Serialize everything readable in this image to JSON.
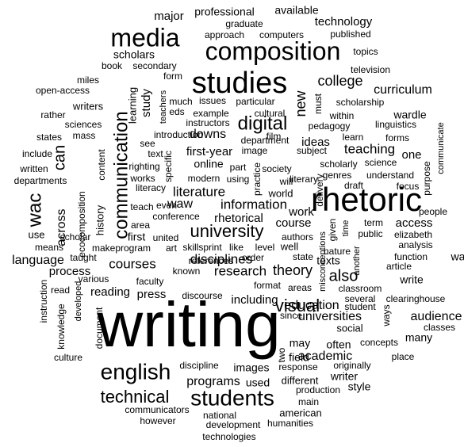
{
  "word_cloud": {
    "words": [
      {
        "text": "writing"
      },
      {
        "text": "rhetoric"
      },
      {
        "text": "studies"
      },
      {
        "text": "composition"
      },
      {
        "text": "media"
      },
      {
        "text": "communication"
      },
      {
        "text": "english"
      },
      {
        "text": "students"
      },
      {
        "text": "digital"
      },
      {
        "text": "university"
      },
      {
        "text": "technical"
      },
      {
        "text": "wac"
      },
      {
        "text": "college"
      },
      {
        "text": "visual"
      },
      {
        "text": "can"
      },
      {
        "text": "also"
      },
      {
        "text": "new"
      },
      {
        "text": "theory"
      },
      {
        "text": "literature"
      },
      {
        "text": "information"
      },
      {
        "text": "research"
      },
      {
        "text": "teaching"
      },
      {
        "text": "courses"
      },
      {
        "text": "disciplines"
      },
      {
        "text": "programs"
      },
      {
        "text": "education"
      },
      {
        "text": "audience"
      },
      {
        "text": "universities"
      },
      {
        "text": "academic"
      },
      {
        "text": "language"
      },
      {
        "text": "across"
      },
      {
        "text": "curriculum"
      },
      {
        "text": "work"
      },
      {
        "text": "course"
      },
      {
        "text": "waw"
      },
      {
        "text": "downs"
      },
      {
        "text": "first-year"
      },
      {
        "text": "rhetorical"
      },
      {
        "text": "ideas"
      },
      {
        "text": "access"
      },
      {
        "text": "technology"
      },
      {
        "text": "major"
      },
      {
        "text": "professional"
      },
      {
        "text": "available"
      },
      {
        "text": "scholars"
      },
      {
        "text": "study"
      },
      {
        "text": "online"
      },
      {
        "text": "wardle"
      },
      {
        "text": "one"
      },
      {
        "text": "process"
      },
      {
        "text": "reading"
      },
      {
        "text": "press"
      },
      {
        "text": "including"
      },
      {
        "text": "may"
      },
      {
        "text": "many"
      },
      {
        "text": "field"
      },
      {
        "text": "write"
      },
      {
        "text": "way"
      },
      {
        "text": "often"
      },
      {
        "text": "writer"
      },
      {
        "text": "style"
      },
      {
        "text": "images"
      },
      {
        "text": "used"
      },
      {
        "text": "different"
      },
      {
        "text": "american"
      },
      {
        "text": "social"
      },
      {
        "text": "texts"
      },
      {
        "text": "first"
      },
      {
        "text": "history"
      },
      {
        "text": "learning"
      },
      {
        "text": "world"
      },
      {
        "text": "well"
      },
      {
        "text": "graduate"
      },
      {
        "text": "computers"
      },
      {
        "text": "approach"
      },
      {
        "text": "published"
      },
      {
        "text": "book"
      },
      {
        "text": "secondary"
      },
      {
        "text": "topics"
      },
      {
        "text": "television"
      },
      {
        "text": "miles"
      },
      {
        "text": "open-access"
      },
      {
        "text": "form"
      },
      {
        "text": "much"
      },
      {
        "text": "issues"
      },
      {
        "text": "particular"
      },
      {
        "text": "must"
      },
      {
        "text": "scholarship"
      },
      {
        "text": "writers"
      },
      {
        "text": "eds"
      },
      {
        "text": "example"
      },
      {
        "text": "teachers"
      },
      {
        "text": "instructors"
      },
      {
        "text": "cultural"
      },
      {
        "text": "within"
      },
      {
        "text": "rather"
      },
      {
        "text": "sciences"
      },
      {
        "text": "pedagogy"
      },
      {
        "text": "linguistics"
      },
      {
        "text": "mass"
      },
      {
        "text": "introduction"
      },
      {
        "text": "film"
      },
      {
        "text": "learn"
      },
      {
        "text": "forms"
      },
      {
        "text": "states"
      },
      {
        "text": "text"
      },
      {
        "text": "department"
      },
      {
        "text": "see"
      },
      {
        "text": "image"
      },
      {
        "text": "subject"
      },
      {
        "text": "communicate"
      },
      {
        "text": "include"
      },
      {
        "text": "scholarly"
      },
      {
        "text": "science"
      },
      {
        "text": "written"
      },
      {
        "text": "righting"
      },
      {
        "text": "part"
      },
      {
        "text": "society"
      },
      {
        "text": "literary"
      },
      {
        "text": "genres"
      },
      {
        "text": "understand"
      },
      {
        "text": "departments"
      },
      {
        "text": "works"
      },
      {
        "text": "using"
      },
      {
        "text": "specific"
      },
      {
        "text": "modern"
      },
      {
        "text": "literacy"
      },
      {
        "text": "practice"
      },
      {
        "text": "draft"
      },
      {
        "text": "focus"
      },
      {
        "text": "purpose"
      },
      {
        "text": "content"
      },
      {
        "text": "will"
      },
      {
        "text": "delivery"
      },
      {
        "text": "ecocomposition"
      },
      {
        "text": "teach"
      },
      {
        "text": "even"
      },
      {
        "text": "conference"
      },
      {
        "text": "area"
      },
      {
        "text": "people"
      },
      {
        "text": "use"
      },
      {
        "text": "scholar"
      },
      {
        "text": "united"
      },
      {
        "text": "term"
      },
      {
        "text": "public"
      },
      {
        "text": "authors"
      },
      {
        "text": "elizabeth"
      },
      {
        "text": "given"
      },
      {
        "text": "time"
      },
      {
        "text": "analysis"
      },
      {
        "text": "means"
      },
      {
        "text": "makeprogram"
      },
      {
        "text": "skillsprint"
      },
      {
        "text": "like"
      },
      {
        "text": "level"
      },
      {
        "text": "article"
      },
      {
        "text": "art"
      },
      {
        "text": "state"
      },
      {
        "text": "taught"
      },
      {
        "text": "nature"
      },
      {
        "text": "function"
      },
      {
        "text": "references"
      },
      {
        "text": "order"
      },
      {
        "text": "known"
      },
      {
        "text": "various"
      },
      {
        "text": "faculty"
      },
      {
        "text": "format"
      },
      {
        "text": "areas"
      },
      {
        "text": "misconceptions"
      },
      {
        "text": "another"
      },
      {
        "text": "classroom"
      },
      {
        "text": "read"
      },
      {
        "text": "developed"
      },
      {
        "text": "discourse"
      },
      {
        "text": "clearinghouse"
      },
      {
        "text": "several"
      },
      {
        "text": "student"
      },
      {
        "text": "since"
      },
      {
        "text": "ways"
      },
      {
        "text": "instruction"
      },
      {
        "text": "classes"
      },
      {
        "text": "knowledge"
      },
      {
        "text": "document"
      },
      {
        "text": "two"
      },
      {
        "text": "concepts"
      },
      {
        "text": "culture"
      },
      {
        "text": "place"
      },
      {
        "text": "response"
      },
      {
        "text": "originally"
      },
      {
        "text": "discipline"
      },
      {
        "text": "production"
      },
      {
        "text": "main"
      },
      {
        "text": "communicators"
      },
      {
        "text": "national"
      },
      {
        "text": "humanities"
      },
      {
        "text": "however"
      },
      {
        "text": "development"
      },
      {
        "text": "technologies"
      }
    ]
  }
}
